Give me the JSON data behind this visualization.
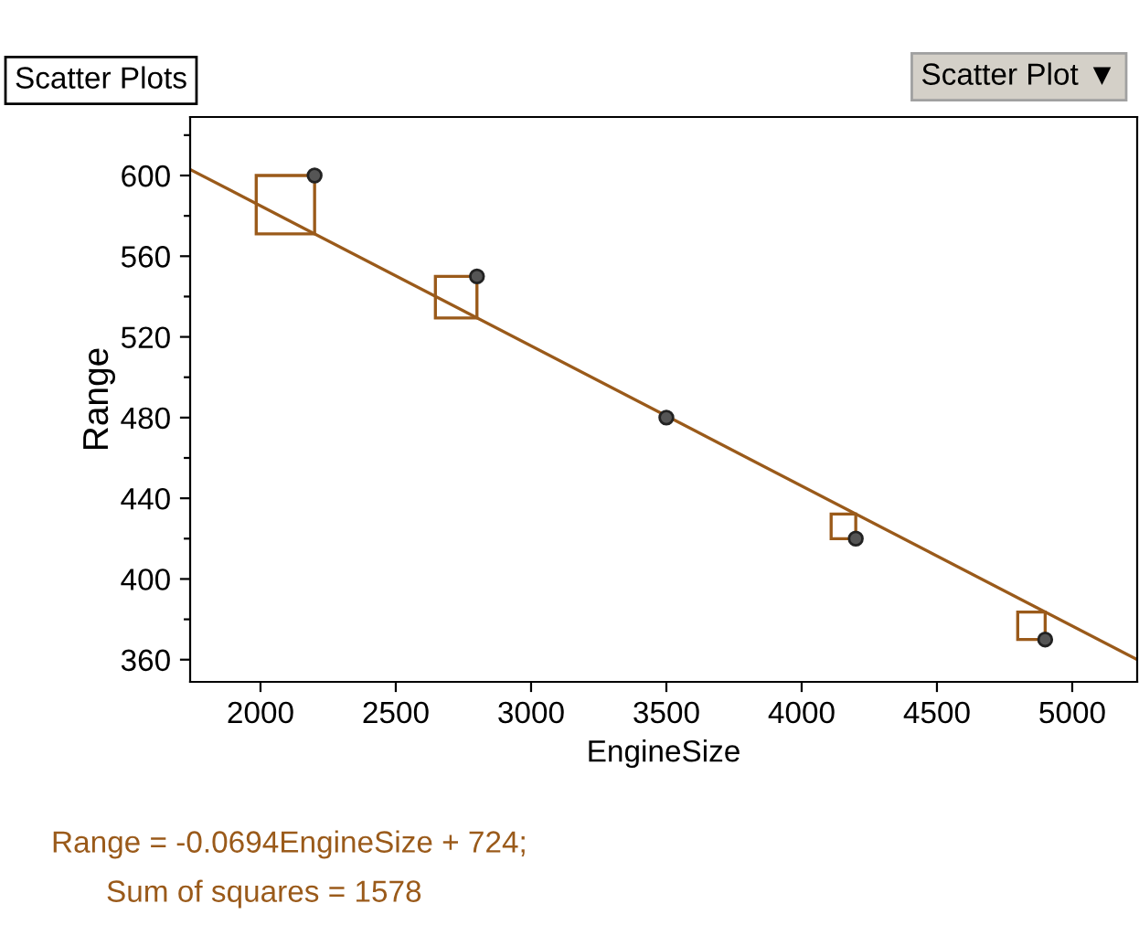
{
  "chart_data": {
    "type": "scatter",
    "title": "Scatter Plots",
    "xlabel": "EngineSize",
    "ylabel": "Range",
    "annotations": [
      "Scatter Plot ▼",
      "Range = -0.0694EngineSize + 724;",
      "Sum of squares = 1578"
    ],
    "xlim": [
      1740,
      5240
    ],
    "ylim": [
      349,
      629
    ],
    "xticks": [
      2000,
      2500,
      3000,
      3500,
      4000,
      4500,
      5000
    ],
    "yticks": [
      360,
      {
        "value": 380,
        "label": null
      },
      400,
      {
        "value": 420,
        "label": null
      },
      440,
      {
        "value": 460,
        "label": null
      },
      480,
      {
        "value": 500,
        "label": null
      },
      520,
      {
        "value": 540,
        "label": null
      },
      560,
      {
        "value": 580,
        "label": null
      },
      600,
      {
        "value": 620,
        "label": null
      }
    ],
    "grid": false,
    "marker": "circle",
    "series": [
      {
        "color": "#555555",
        "x": [
          2200,
          2800,
          3500,
          4200,
          4900
        ],
        "values": [
          600,
          550,
          480,
          420,
          370
        ]
      },
      {
        "type": "line",
        "color": "#9a5a1a",
        "line_style": "solid",
        "marker": "none",
        "x": [
          1740,
          5240
        ],
        "values": [
          603,
          360
        ]
      }
    ]
  }
}
